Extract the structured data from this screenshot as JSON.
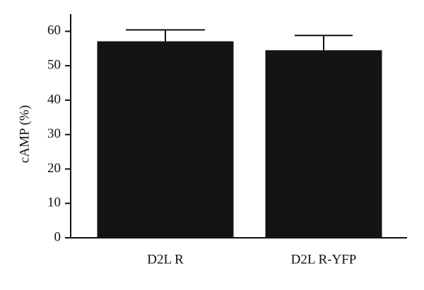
{
  "chart_data": {
    "type": "bar",
    "ylabel": "cAMP (%)",
    "categories": [
      "D2L R",
      "D2L R-YFP"
    ],
    "values": [
      57.1,
      54.5
    ],
    "errors": [
      3.3,
      4.3
    ],
    "color": "#141414",
    "ylim": [
      0,
      65
    ],
    "yticks": [
      0,
      10,
      20,
      30,
      40,
      50,
      60
    ]
  }
}
